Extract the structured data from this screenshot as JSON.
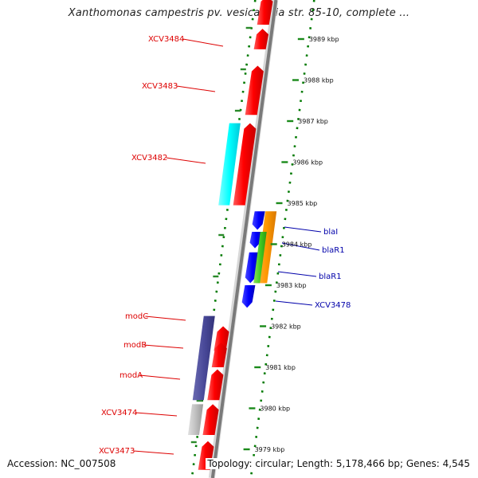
{
  "title": "Xanthomonas campestris pv. vesicatoria str. 85-10, complete ...",
  "footer": {
    "accession": "Accession: NC_007508",
    "topology": "Topology: circular; Length: 5,178,466 bp; Genes: 4,545"
  },
  "colors": {
    "label_red": "#dd0000",
    "label_blue": "#0000aa",
    "guide_green": "#007a00",
    "ring_green": "#1a7a1a"
  },
  "position_ticks_kbp": [
    3989,
    3988,
    3987,
    3986,
    3985,
    3984,
    3983,
    3982,
    3981,
    3980,
    3979
  ],
  "position_tick_labels": [
    "3989 kbp",
    "3988 kbp",
    "3987 kbp",
    "3986 kbp",
    "3985 kbp",
    "3984 kbp",
    "3983 kbp",
    "3982 kbp",
    "3981 kbp",
    "3980 kbp",
    "3979 kbp"
  ],
  "features": [
    {
      "label": "XCV3484",
      "strand": "forward",
      "kind": "gene",
      "color": "red",
      "start_kbp": 3989.25,
      "end_kbp": 3988.75
    },
    {
      "label": "",
      "strand": "forward",
      "kind": "gene",
      "color": "red",
      "start_kbp": 3990.05,
      "end_kbp": 3989.35
    },
    {
      "label": "XCV3483",
      "strand": "forward",
      "kind": "gene",
      "color": "red",
      "start_kbp": 3988.35,
      "end_kbp": 3987.15
    },
    {
      "label": "XCV3482",
      "strand": "forward",
      "kind": "gene",
      "color": "red",
      "start_kbp": 3986.95,
      "end_kbp": 3984.95
    },
    {
      "label": "",
      "strand": "forward",
      "kind": "CDS",
      "color": "cyan",
      "start_kbp": 3986.95,
      "end_kbp": 3984.95
    },
    {
      "label": "blaI",
      "strand": "reverse",
      "kind": "gene",
      "color": "blue",
      "start_kbp": 3984.8,
      "end_kbp": 3984.35
    },
    {
      "label": "blaR1",
      "strand": "reverse",
      "kind": "gene",
      "color": "blue",
      "start_kbp": 3984.3,
      "end_kbp": 3983.9
    },
    {
      "label": "blaR1",
      "strand": "reverse",
      "kind": "gene",
      "color": "blue",
      "start_kbp": 3983.8,
      "end_kbp": 3983.05
    },
    {
      "label": "XCV3478",
      "strand": "reverse",
      "kind": "gene",
      "color": "blue",
      "start_kbp": 3983.0,
      "end_kbp": 3982.45
    },
    {
      "label": "",
      "strand": "reverse",
      "kind": "CDS",
      "color": "orange",
      "start_kbp": 3984.8,
      "end_kbp": 3983.05
    },
    {
      "label": "",
      "strand": "reverse",
      "kind": "CDS",
      "color": "green",
      "start_kbp": 3984.3,
      "end_kbp": 3983.05
    },
    {
      "label": "modC",
      "strand": "forward",
      "kind": "gene",
      "color": "red",
      "start_kbp": 3982.0,
      "end_kbp": 3981.4
    },
    {
      "label": "modB",
      "strand": "forward",
      "kind": "gene",
      "color": "red",
      "start_kbp": 3981.6,
      "end_kbp": 3981.0
    },
    {
      "label": "modA",
      "strand": "forward",
      "kind": "gene",
      "color": "red",
      "start_kbp": 3980.95,
      "end_kbp": 3980.2
    },
    {
      "label": "",
      "strand": "forward",
      "kind": "CDS",
      "color": "purple",
      "start_kbp": 3982.25,
      "end_kbp": 3980.2
    },
    {
      "label": "XCV3474",
      "strand": "forward",
      "kind": "gene",
      "color": "red",
      "start_kbp": 3980.1,
      "end_kbp": 3979.35
    },
    {
      "label": "",
      "strand": "forward",
      "kind": "CDS",
      "color": "gray",
      "start_kbp": 3980.1,
      "end_kbp": 3979.35
    },
    {
      "label": "XCV3473",
      "strand": "forward",
      "kind": "gene",
      "color": "red",
      "start_kbp": 3979.2,
      "end_kbp": 3978.5
    }
  ]
}
